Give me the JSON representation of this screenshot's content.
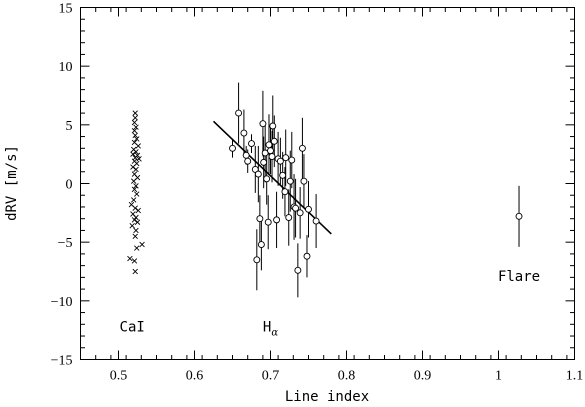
{
  "chart_data": {
    "type": "scatter",
    "title": "",
    "xlabel": "Line index",
    "ylabel": "dRV  [m/s]",
    "xlim": [
      0.45,
      1.1
    ],
    "ylim": [
      -15,
      15
    ],
    "x_ticks": [
      0.5,
      0.6,
      0.7,
      0.8,
      0.9,
      1,
      1.1
    ],
    "x_tick_labels": [
      "0.5",
      "0.6",
      "0.7",
      "0.8",
      "0.9",
      "1",
      "1.1"
    ],
    "y_ticks": [
      -15,
      -10,
      -5,
      0,
      5,
      10,
      15
    ],
    "y_tick_labels": [
      "−15",
      "−10",
      "−5",
      "0",
      "5",
      "10",
      "15"
    ],
    "grid": false,
    "annotations": [
      {
        "text": "CaI",
        "x": 0.518,
        "y": -12.6
      },
      {
        "text": "H",
        "sub": "α",
        "x": 0.7,
        "y": -12.6
      },
      {
        "text": "Flare",
        "x": 1.027,
        "y": -8.3
      }
    ],
    "series": [
      {
        "marker": "cross",
        "points": [
          [
            0.522,
            6.0
          ],
          [
            0.522,
            5.6
          ],
          [
            0.521,
            5.2
          ],
          [
            0.523,
            4.8
          ],
          [
            0.521,
            4.5
          ],
          [
            0.522,
            4.1
          ],
          [
            0.524,
            3.8
          ],
          [
            0.521,
            3.5
          ],
          [
            0.526,
            3.2
          ],
          [
            0.52,
            2.9
          ],
          [
            0.523,
            2.7
          ],
          [
            0.519,
            2.5
          ],
          [
            0.525,
            2.4
          ],
          [
            0.522,
            2.2
          ],
          [
            0.527,
            2.1
          ],
          [
            0.521,
            1.9
          ],
          [
            0.524,
            1.7
          ],
          [
            0.519,
            1.4
          ],
          [
            0.523,
            1.2
          ],
          [
            0.521,
            0.8
          ],
          [
            0.525,
            0.5
          ],
          [
            0.52,
            0.2
          ],
          [
            0.523,
            -0.2
          ],
          [
            0.521,
            -0.5
          ],
          [
            0.524,
            -0.9
          ],
          [
            0.52,
            -1.4
          ],
          [
            0.517,
            -1.8
          ],
          [
            0.522,
            -2.1
          ],
          [
            0.526,
            -2.3
          ],
          [
            0.519,
            -2.6
          ],
          [
            0.523,
            -2.9
          ],
          [
            0.521,
            -3.1
          ],
          [
            0.525,
            -3.3
          ],
          [
            0.518,
            -3.6
          ],
          [
            0.523,
            -4.0
          ],
          [
            0.522,
            -4.5
          ],
          [
            0.531,
            -5.2
          ],
          [
            0.524,
            -5.5
          ],
          [
            0.515,
            -6.4
          ],
          [
            0.521,
            -6.6
          ],
          [
            0.522,
            -7.5
          ]
        ]
      },
      {
        "marker": "circle",
        "points": [
          {
            "x": 0.65,
            "y": 3.0,
            "err": 0.8
          },
          {
            "x": 0.658,
            "y": 6.0,
            "err": 2.6
          },
          {
            "x": 0.665,
            "y": 4.3,
            "err": 2.0
          },
          {
            "x": 0.668,
            "y": 2.4,
            "err": 0.8
          },
          {
            "x": 0.67,
            "y": 1.9,
            "err": 1.0
          },
          {
            "x": 0.675,
            "y": 3.4,
            "err": 0.8
          },
          {
            "x": 0.68,
            "y": 1.2,
            "err": 2.0
          },
          {
            "x": 0.682,
            "y": -6.5,
            "err": 2.6
          },
          {
            "x": 0.684,
            "y": 0.8,
            "err": 2.4
          },
          {
            "x": 0.686,
            "y": -3.0,
            "err": 2.0
          },
          {
            "x": 0.688,
            "y": -5.2,
            "err": 2.2
          },
          {
            "x": 0.69,
            "y": 5.1,
            "err": 2.8
          },
          {
            "x": 0.691,
            "y": 1.8,
            "err": 2.2
          },
          {
            "x": 0.693,
            "y": 2.6,
            "err": 2.5
          },
          {
            "x": 0.695,
            "y": 0.4,
            "err": 2.2
          },
          {
            "x": 0.697,
            "y": -3.3,
            "err": 2.3
          },
          {
            "x": 0.698,
            "y": 3.3,
            "err": 2.6
          },
          {
            "x": 0.7,
            "y": 2.8,
            "err": 2.0
          },
          {
            "x": 0.702,
            "y": 2.3,
            "err": 2.2
          },
          {
            "x": 0.703,
            "y": 4.9,
            "err": 2.6
          },
          {
            "x": 0.705,
            "y": 3.6,
            "err": 2.2
          },
          {
            "x": 0.708,
            "y": -3.1,
            "err": 2.4
          },
          {
            "x": 0.71,
            "y": 2.1,
            "err": 2.3
          },
          {
            "x": 0.713,
            "y": 1.9,
            "err": 2.0
          },
          {
            "x": 0.716,
            "y": 0.7,
            "err": 2.0
          },
          {
            "x": 0.719,
            "y": -0.7,
            "err": 2.1
          },
          {
            "x": 0.72,
            "y": 2.2,
            "err": 2.4
          },
          {
            "x": 0.724,
            "y": -2.9,
            "err": 2.4
          },
          {
            "x": 0.726,
            "y": 0.2,
            "err": 2.6
          },
          {
            "x": 0.728,
            "y": 2.0,
            "err": 2.4
          },
          {
            "x": 0.731,
            "y": -2.0,
            "err": 2.8
          },
          {
            "x": 0.733,
            "y": -2.1,
            "err": 2.5
          },
          {
            "x": 0.736,
            "y": -7.4,
            "err": 2.3
          },
          {
            "x": 0.739,
            "y": -2.5,
            "err": 2.2
          },
          {
            "x": 0.742,
            "y": 3.0,
            "err": 2.6
          },
          {
            "x": 0.744,
            "y": 0.2,
            "err": 2.3
          },
          {
            "x": 0.748,
            "y": -6.2,
            "err": 1.8
          },
          {
            "x": 0.75,
            "y": -2.2,
            "err": 2.4
          },
          {
            "x": 0.76,
            "y": -3.2,
            "err": 2.3
          },
          {
            "x": 1.027,
            "y": -2.8,
            "err": 2.6
          }
        ]
      }
    ],
    "fit_line": {
      "x": [
        0.625,
        0.78
      ],
      "y": [
        5.3,
        -4.3
      ]
    }
  }
}
